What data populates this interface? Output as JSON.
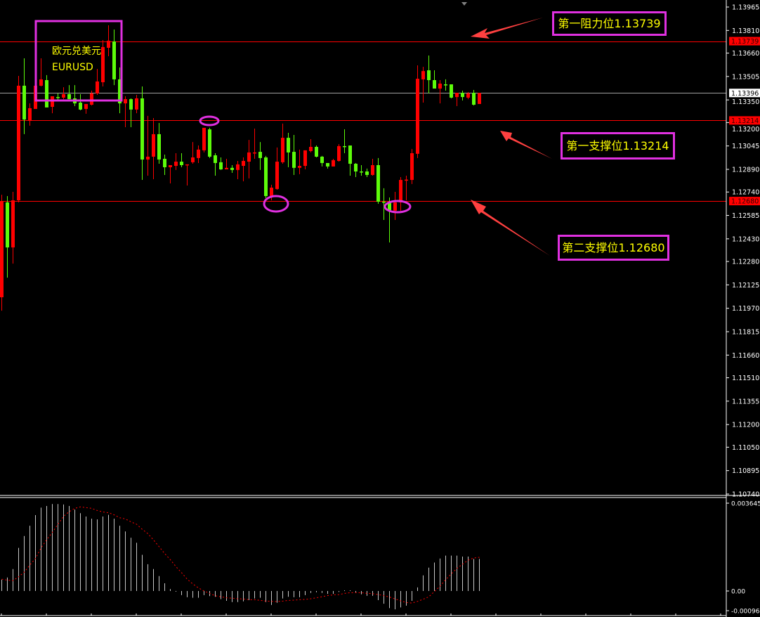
{
  "instrument": {
    "name_cn": "欧元兑美元",
    "symbol": "EURUSD"
  },
  "annotations": {
    "resistance1": "第一阻力位1.13739",
    "support1": "第一支撑位1.13214",
    "support2": "第二支撑位1.12680"
  },
  "colors": {
    "bull": "#ff0000",
    "bear": "#5dfc0a",
    "level_line": "#ff0000",
    "current_price_line": "#a0a0a0",
    "annotation_box": "#e030e0",
    "annotation_text": "#ffff00",
    "macd_histogram": "#c8c8c8",
    "macd_signal": "#ff0000"
  },
  "chart_data": [
    {
      "type": "candlestick",
      "symbol": "EURUSD",
      "ylim": [
        1.1074,
        1.13965
      ],
      "y_ticks": [
        "1.13965",
        "1.13810",
        "1.13660",
        "1.13505",
        "1.13350",
        "1.13200",
        "1.13045",
        "1.12890",
        "1.12740",
        "1.12585",
        "1.12430",
        "1.12280",
        "1.12125",
        "1.11970",
        "1.11815",
        "1.11660",
        "1.11510",
        "1.11355",
        "1.11200",
        "1.11050",
        "1.10895",
        "1.10740"
      ],
      "horizontal_levels": [
        {
          "value": 1.13739,
          "label": "1.13739",
          "color": "#ff0000"
        },
        {
          "value": 1.13214,
          "label": "1.13214",
          "color": "#ff0000"
        },
        {
          "value": 1.1268,
          "label": "1.12680",
          "color": "#ff0000"
        }
      ],
      "current_price": {
        "value": 1.13396,
        "label": "1.13396"
      },
      "ohlc": [
        [
          1.12043,
          1.12722,
          1.11954,
          1.12676
        ],
        [
          1.12671,
          1.12713,
          1.12173,
          1.12373
        ],
        [
          1.12373,
          1.12741,
          1.12266,
          1.12685
        ],
        [
          1.12685,
          1.13509,
          1.12671,
          1.13444
        ],
        [
          1.13444,
          1.13625,
          1.13123,
          1.1322
        ],
        [
          1.13211,
          1.13327,
          1.13179,
          1.13295
        ],
        [
          1.1329,
          1.13444,
          1.1329,
          1.13444
        ],
        [
          1.13444,
          1.13625,
          1.13439,
          1.13486
        ],
        [
          1.13481,
          1.13514,
          1.133,
          1.133
        ],
        [
          1.13304,
          1.13374,
          1.13262,
          1.13374
        ],
        [
          1.13369,
          1.13393,
          1.13351,
          1.13365
        ],
        [
          1.13365,
          1.13434,
          1.13355,
          1.13388
        ],
        [
          1.13388,
          1.13448,
          1.13355,
          1.13355
        ],
        [
          1.1336,
          1.13448,
          1.13309,
          1.13327
        ],
        [
          1.13332,
          1.13388,
          1.13281,
          1.13286
        ],
        [
          1.1329,
          1.13323,
          1.13258,
          1.13323
        ],
        [
          1.13318,
          1.13411,
          1.13313,
          1.13393
        ],
        [
          1.13393,
          1.13555,
          1.13383,
          1.13472
        ],
        [
          1.13467,
          1.13746,
          1.13439,
          1.137
        ],
        [
          1.13695,
          1.13844,
          1.13639,
          1.13742
        ],
        [
          1.13737,
          1.13816,
          1.13448,
          1.13486
        ],
        [
          1.13486,
          1.13565,
          1.13262,
          1.13327
        ],
        [
          1.13327,
          1.13374,
          1.13169,
          1.13355
        ],
        [
          1.13355,
          1.1336,
          1.13169,
          1.13286
        ],
        [
          1.13286,
          1.13383,
          1.13262,
          1.1336
        ],
        [
          1.1336,
          1.13439,
          1.1282,
          1.12955
        ],
        [
          1.12955,
          1.13244,
          1.12848,
          1.12974
        ],
        [
          1.12974,
          1.1323,
          1.12825,
          1.13123
        ],
        [
          1.13123,
          1.13197,
          1.12927,
          1.12955
        ],
        [
          1.1296,
          1.12988,
          1.12853,
          1.12904
        ],
        [
          1.12904,
          1.12918,
          1.12797,
          1.12918
        ],
        [
          1.12913,
          1.12997,
          1.12886,
          1.12941
        ],
        [
          1.12941,
          1.12997,
          1.12904,
          1.12918
        ],
        [
          1.12923,
          1.12923,
          1.12783,
          1.12923
        ],
        [
          1.12937,
          1.13071,
          1.12927,
          1.12969
        ],
        [
          1.12965,
          1.13048,
          1.12932,
          1.13021
        ],
        [
          1.13016,
          1.13165,
          1.13002,
          1.13165
        ],
        [
          1.13155,
          1.13165,
          1.12965,
          1.12974
        ],
        [
          1.12983,
          1.12997,
          1.12848,
          1.12932
        ],
        [
          1.12937,
          1.12969,
          1.12886,
          1.1289
        ],
        [
          1.1289,
          1.1296,
          1.1289,
          1.129
        ],
        [
          1.129,
          1.12918,
          1.12867,
          1.12886
        ],
        [
          1.12886,
          1.12946,
          1.12825,
          1.12923
        ],
        [
          1.12913,
          1.12969,
          1.12811,
          1.12946
        ],
        [
          1.12941,
          1.13085,
          1.1283,
          1.13002
        ],
        [
          1.13002,
          1.1316,
          1.1296,
          1.13002
        ],
        [
          1.13006,
          1.13071,
          1.12886,
          1.12965
        ],
        [
          1.12969,
          1.12979,
          1.12699,
          1.12713
        ],
        [
          1.12713,
          1.12788,
          1.12685,
          1.12769
        ],
        [
          1.1276,
          1.13035,
          1.12755,
          1.12941
        ],
        [
          1.12937,
          1.13193,
          1.12927,
          1.13099
        ],
        [
          1.13099,
          1.13132,
          1.12904,
          1.13002
        ],
        [
          1.13006,
          1.13118,
          1.12853,
          1.129
        ],
        [
          1.129,
          1.13021,
          1.12858,
          1.12913
        ],
        [
          1.12913,
          1.13016,
          1.1289,
          1.13016
        ],
        [
          1.13011,
          1.1309,
          1.13002,
          1.13039
        ],
        [
          1.13039,
          1.13048,
          1.12969,
          1.12974
        ],
        [
          1.12974,
          1.12979,
          1.12909,
          1.12932
        ],
        [
          1.12932,
          1.12932,
          1.12895,
          1.12909
        ],
        [
          1.12909,
          1.1296,
          1.12909,
          1.12951
        ],
        [
          1.12946,
          1.13057,
          1.12941,
          1.13044
        ],
        [
          1.13044,
          1.13155,
          1.12997,
          1.13039
        ],
        [
          1.13048,
          1.13048,
          1.12848,
          1.12927
        ],
        [
          1.12927,
          1.12932,
          1.12839,
          1.12876
        ],
        [
          1.12876,
          1.12918,
          1.12848,
          1.12872
        ],
        [
          1.12876,
          1.12895,
          1.12839,
          1.12853
        ],
        [
          1.12853,
          1.1296,
          1.12848,
          1.12918
        ],
        [
          1.12918,
          1.12965,
          1.12662,
          1.12676
        ],
        [
          1.12676,
          1.12765,
          1.12555,
          1.12671
        ],
        [
          1.12671,
          1.12704,
          1.12406,
          1.1262
        ],
        [
          1.12616,
          1.12741,
          1.12555,
          1.12671
        ],
        [
          1.12671,
          1.12839,
          1.12616,
          1.1282
        ],
        [
          1.1282,
          1.12848,
          1.12685,
          1.12822
        ],
        [
          1.1282,
          1.13025,
          1.12793,
          1.12997
        ],
        [
          1.12993,
          1.13579,
          1.12965,
          1.1349
        ],
        [
          1.13486,
          1.13569,
          1.13332,
          1.13541
        ],
        [
          1.13546,
          1.13644,
          1.13393,
          1.13481
        ],
        [
          1.13481,
          1.13546,
          1.13425,
          1.13425
        ],
        [
          1.13425,
          1.13481,
          1.13327,
          1.13458
        ],
        [
          1.13453,
          1.13486,
          1.13411,
          1.13448
        ],
        [
          1.13453,
          1.13453,
          1.1336,
          1.13365
        ],
        [
          1.13369,
          1.13397,
          1.13309,
          1.13397
        ],
        [
          1.13397,
          1.13411,
          1.13346,
          1.13369
        ],
        [
          1.13365,
          1.13402,
          1.13355,
          1.13393
        ],
        [
          1.13397,
          1.13416,
          1.13313,
          1.13318
        ],
        [
          1.13323,
          1.13397,
          1.13323,
          1.13396
        ]
      ]
    },
    {
      "type": "bar",
      "indicator": "MACD",
      "ylim": [
        -0.000964,
        0.003645
      ],
      "y_ticks": [
        "0.003645",
        "0.00",
        "-0.000964"
      ],
      "histogram": [
        0.00047,
        0.00056,
        0.00091,
        0.00179,
        0.00228,
        0.00271,
        0.00315,
        0.00346,
        0.00353,
        0.00361,
        0.00361,
        0.00359,
        0.00353,
        0.00338,
        0.00323,
        0.00309,
        0.003,
        0.00297,
        0.00309,
        0.00316,
        0.003,
        0.00271,
        0.00247,
        0.00221,
        0.002,
        0.0015,
        0.00111,
        0.00091,
        0.00062,
        0.00032,
        8e-05,
        -3e-05,
        -0.00017,
        -0.00026,
        -0.00028,
        -0.00028,
        -0.00017,
        -0.00021,
        -0.00024,
        -0.00034,
        -0.00041,
        -0.00046,
        -0.00046,
        -0.00043,
        -0.00038,
        -0.00031,
        -0.00028,
        -0.00046,
        -0.00058,
        -0.00049,
        -0.00031,
        -0.00024,
        -0.00026,
        -0.00026,
        -0.00017,
        -8e-05,
        -5e-05,
        -8e-05,
        -0.00012,
        -0.00012,
        -4e-05,
        0.0,
        3e-05,
        -7e-05,
        -0.00014,
        -0.0002,
        -0.0002,
        -0.00038,
        -0.00053,
        -0.00071,
        -0.00076,
        -0.00068,
        -0.00061,
        -0.00041,
        0.00015,
        0.00065,
        0.00097,
        0.00118,
        0.00135,
        0.00147,
        0.00147,
        0.00147,
        0.00143,
        0.00143,
        0.00133,
        0.00133
      ],
      "signal": [
        0.00049,
        0.00045,
        0.00043,
        0.00059,
        0.00078,
        0.00108,
        0.00135,
        0.00179,
        0.00213,
        0.00243,
        0.00277,
        0.0031,
        0.00329,
        0.00343,
        0.00349,
        0.00346,
        0.00343,
        0.00334,
        0.00328,
        0.00325,
        0.00316,
        0.00304,
        0.00299,
        0.00287,
        0.00277,
        0.00256,
        0.00238,
        0.00212,
        0.00184,
        0.00155,
        0.0013,
        0.00101,
        0.00076,
        0.00049,
        0.00029,
        0.00013,
        0.0,
        -0.0001,
        -0.0002,
        -0.00024,
        -0.00028,
        -0.0003,
        -0.00032,
        -0.00033,
        -0.00036,
        -0.00036,
        -0.00039,
        -0.00042,
        -0.00043,
        -0.00044,
        -0.00042,
        -0.00039,
        -0.00038,
        -0.00036,
        -0.00035,
        -0.00032,
        -0.00028,
        -0.00024,
        -0.00019,
        -0.00016,
        -0.00015,
        -0.0001,
        -7e-05,
        -7e-05,
        -7e-05,
        -0.0001,
        -0.00011,
        -0.00015,
        -0.00019,
        -0.00025,
        -0.00033,
        -0.00041,
        -0.00048,
        -0.0005,
        -0.00043,
        -0.00034,
        -0.00024,
        -2e-05,
        0.0002,
        0.00047,
        0.00071,
        0.00094,
        0.00111,
        0.00128,
        0.00137,
        0.0014
      ]
    }
  ]
}
